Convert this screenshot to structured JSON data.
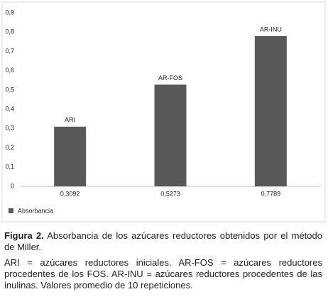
{
  "chart_data": {
    "type": "bar",
    "categories": [
      "0,3092",
      "0,5273",
      "0,7789"
    ],
    "series": [
      {
        "name": "Absorbancia",
        "color": "#595959",
        "values": [
          0.3092,
          0.5273,
          0.7789
        ]
      }
    ],
    "bar_labels": [
      "ARI",
      "AR-FOS",
      "AR-INU"
    ],
    "ylim": [
      0,
      0.9
    ],
    "yticks": [
      0,
      {
        "value": 0.1,
        "label": "0,1"
      },
      {
        "value": 0.2,
        "label": "0,2"
      },
      {
        "value": 0.3,
        "label": "0,3"
      },
      {
        "value": 0.4,
        "label": "0,4"
      },
      {
        "value": 0.5,
        "label": "0,5"
      },
      {
        "value": 0.6,
        "label": "0,6"
      },
      {
        "value": 0.7,
        "label": "0,7"
      },
      {
        "value": 0.8,
        "label": "0,8"
      },
      {
        "value": 0.9,
        "label": "0,9"
      }
    ],
    "grid": false,
    "legend": "bottom-left"
  },
  "caption": {
    "label": "Figura 2.",
    "title": "Absorbancia de los azúcares reductores obtenidos por el método de Miller.",
    "note": "ARI = azúcares reductores iniciales.  AR-FOS = azúcares reductores procedentes de los FOS.  AR-INU = azúcares reductores procedentes de las inulinas.  Valores promedio de 10 repeticiones."
  }
}
